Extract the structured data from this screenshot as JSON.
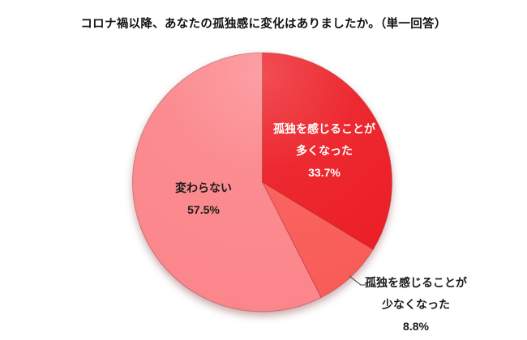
{
  "title": "コロナ禍以降、あなたの孤独感に変化はありましたか。（単一回答）",
  "chart_data": {
    "type": "pie",
    "title": "コロナ禍以降、あなたの孤独感に変化はありましたか。（単一回答）",
    "unit": "%",
    "start_angle_deg": 0,
    "direction": "clockwise",
    "legend": "none",
    "segments": [
      {
        "label": "孤独を感じることが多くなった",
        "value": 33.7,
        "pct_label": "33.7%",
        "color": "#EC1B23",
        "label_lines": [
          "孤独を感じることが",
          "多くなった"
        ],
        "label_placement": "inside",
        "label_color": "#FFFFFF"
      },
      {
        "label": "孤独を感じることが少なくなった",
        "value": 8.8,
        "pct_label": "8.8%",
        "color": "#F95B57",
        "label_lines": [
          "孤独を感じることが",
          "少なくなった"
        ],
        "label_placement": "outside",
        "label_color": "#1A1A1A"
      },
      {
        "label": "変わらない",
        "value": 57.5,
        "pct_label": "57.5%",
        "color": "#FB858A",
        "label_lines": [
          "変わらない"
        ],
        "label_placement": "inside",
        "label_color": "#1A1A1A"
      }
    ],
    "leader_line_color": "#595959"
  }
}
